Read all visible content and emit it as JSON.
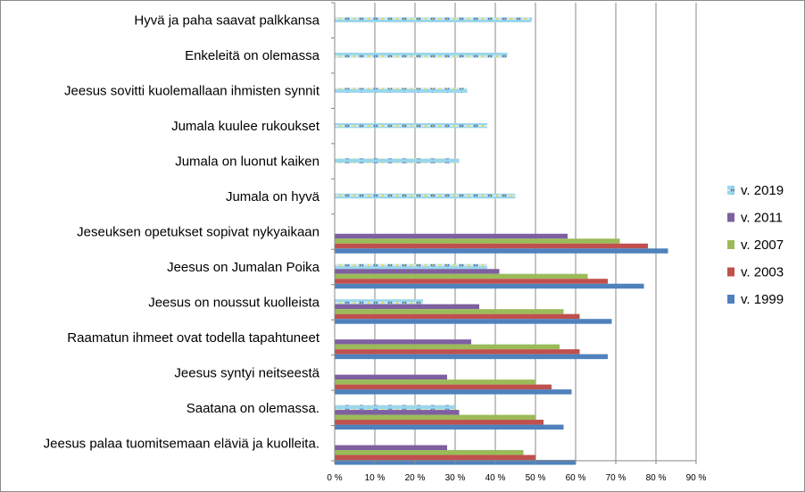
{
  "chart_data": {
    "type": "bar",
    "orientation": "horizontal",
    "categories": [
      "Hyvä ja paha saavat palkkansa",
      "Enkeleitä on olemassa",
      "Jeesus sovitti kuolemallaan ihmisten synnit",
      "Jumala kuulee rukoukset",
      "Jumala on luonut kaiken",
      "Jumala on hyvä",
      "Jeseuksen opetukset sopivat nykyaikaan",
      "Jeesus on Jumalan Poika",
      "Jeesus on noussut kuolleista",
      "Raamatun ihmeet ovat todella tapahtuneet",
      "Jeesus syntyi neitseestä",
      "Saatana on olemassa.",
      "Jeesus palaa tuomitsemaan eläviä ja kuolleita."
    ],
    "series": [
      {
        "name": "v. 2019",
        "color": "#9bd7ec",
        "pattern": "dotted",
        "values": [
          49,
          43,
          33,
          38,
          31,
          45,
          null,
          38,
          22,
          null,
          null,
          30,
          null
        ]
      },
      {
        "name": "v. 2011",
        "color": "#7e5fa0",
        "values": [
          null,
          null,
          null,
          null,
          null,
          null,
          58,
          41,
          36,
          34,
          28,
          31,
          28
        ]
      },
      {
        "name": "v. 2007",
        "color": "#9bbb59",
        "values": [
          null,
          null,
          null,
          null,
          null,
          null,
          71,
          63,
          57,
          56,
          50,
          50,
          47
        ]
      },
      {
        "name": "v. 2003",
        "color": "#c0504d",
        "values": [
          null,
          null,
          null,
          null,
          null,
          null,
          78,
          68,
          61,
          61,
          54,
          52,
          50
        ]
      },
      {
        "name": "v. 1999",
        "color": "#4f81bd",
        "values": [
          null,
          null,
          null,
          null,
          null,
          null,
          83,
          77,
          69,
          68,
          59,
          57,
          60
        ]
      }
    ],
    "legend_order": [
      "v. 2019",
      "v. 2011",
      "v. 2007",
      "v. 2003",
      "v. 1999"
    ],
    "xlim": [
      0,
      90
    ],
    "xticks": [
      0,
      10,
      20,
      30,
      40,
      50,
      60,
      70,
      80,
      90
    ],
    "tick_suffix": " %",
    "grid": "vertical",
    "legend_position": "right"
  }
}
